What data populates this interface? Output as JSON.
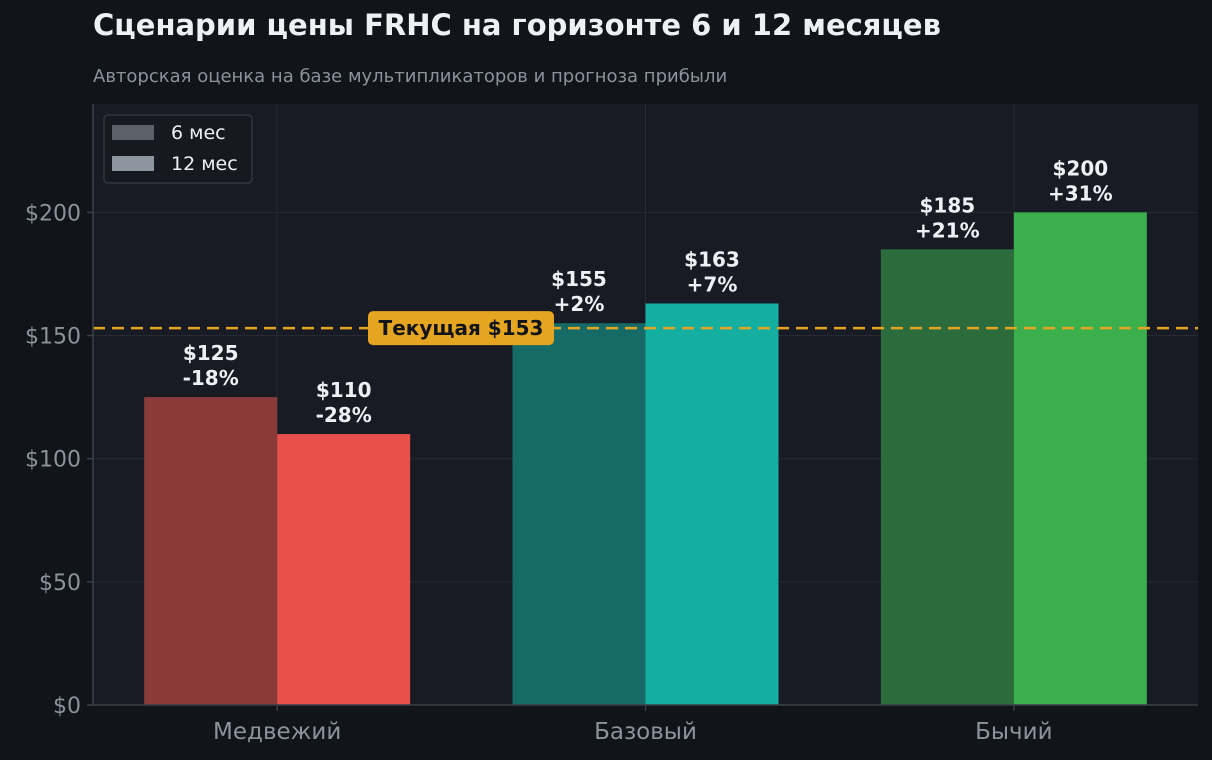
{
  "chart_data": {
    "type": "bar",
    "title": "Сценарии цены FRHC на горизонте 6 и 12 месяцев",
    "subtitle": "Авторская оценка на базе мультипликаторов и прогноза прибыли",
    "categories": [
      "Медвежий",
      "Базовый",
      "Бычий"
    ],
    "series": [
      {
        "name": "6 мес",
        "values": [
          125,
          155,
          185
        ],
        "labels": [
          "$125\n-18%",
          "$155\n+2%",
          "$185\n+21%"
        ],
        "colors": [
          "#8b3a3a",
          "#166b66",
          "#2c6b3c"
        ]
      },
      {
        "name": "12 мес",
        "values": [
          110,
          163,
          200
        ],
        "labels": [
          "$110\n-28%",
          "$163\n+7%",
          "$200\n+31%"
        ],
        "colors": [
          "#e9504a",
          "#14afa0",
          "#3caf4d"
        ]
      }
    ],
    "legend_colors": [
      "#5c6068",
      "#8d959e"
    ],
    "legend_position": "top-left",
    "reference_line": {
      "value": 153,
      "label": "Текущая $153",
      "color": "#e6a520"
    },
    "y_ticks": [
      0,
      50,
      100,
      150,
      200
    ],
    "y_tick_labels": [
      "$0",
      "$50",
      "$100",
      "$150",
      "$200"
    ],
    "ylim": [
      0,
      244
    ],
    "grid": true,
    "colors": {
      "page_bg": "#111418",
      "plot_bg": "#181b23",
      "grid": "#262a33",
      "axis": "#3a3f48",
      "tick_text": "#8b939c",
      "label_text": "#eef1f4"
    }
  }
}
